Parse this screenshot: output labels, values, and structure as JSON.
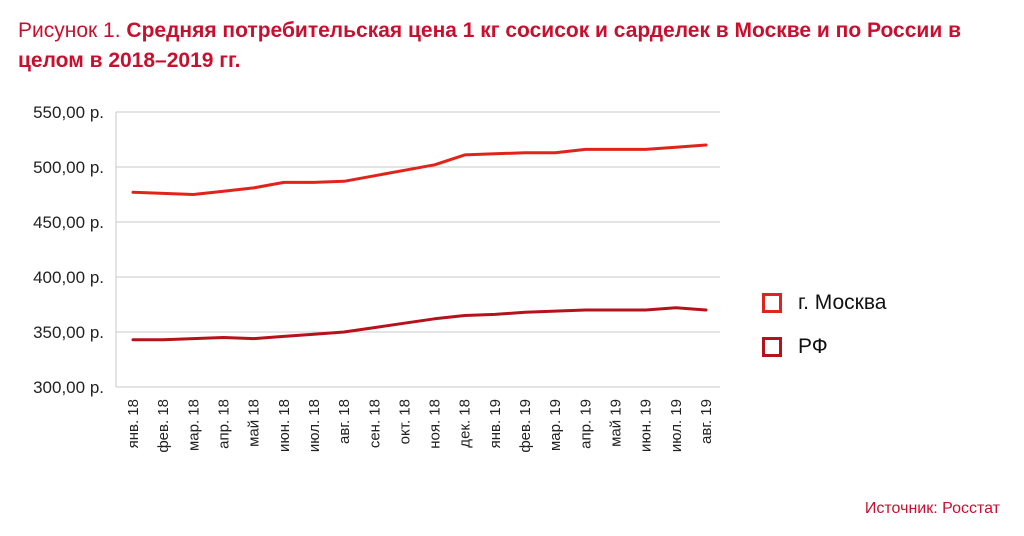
{
  "figure": {
    "prefix": "Рисунок 1.",
    "title": "Средняя потребительская цена 1 кг сосисок и сарделек в Москве и по России в целом в 2018–2019 гг.",
    "source": "Источник: Росстат"
  },
  "chart_data": {
    "type": "line",
    "categories": [
      "янв. 18",
      "фев. 18",
      "мар. 18",
      "апр. 18",
      "май 18",
      "июн. 18",
      "июл. 18",
      "авг. 18",
      "сен. 18",
      "окт. 18",
      "ноя. 18",
      "дек. 18",
      "янв. 19",
      "фев. 19",
      "мар. 19",
      "апр. 19",
      "май 19",
      "июн. 19",
      "июл. 19",
      "авг. 19"
    ],
    "y_ticks": [
      "550,00 р.",
      "500,00 р.",
      "450,00 р.",
      "400,00 р.",
      "350,00 р.",
      "300,00 р."
    ],
    "ylim": [
      300,
      550
    ],
    "grid": true,
    "legend_position": "right",
    "series": [
      {
        "name": "г. Москва",
        "color": "#e2231a",
        "values": [
          477,
          476,
          475,
          478,
          481,
          486,
          486,
          487,
          492,
          497,
          502,
          511,
          512,
          513,
          513,
          516,
          516,
          516,
          518,
          520
        ]
      },
      {
        "name": "РФ",
        "color": "#b5121b",
        "values": [
          343,
          343,
          344,
          345,
          344,
          346,
          348,
          350,
          354,
          358,
          362,
          365,
          366,
          368,
          369,
          370,
          370,
          370,
          372,
          370
        ]
      }
    ]
  }
}
